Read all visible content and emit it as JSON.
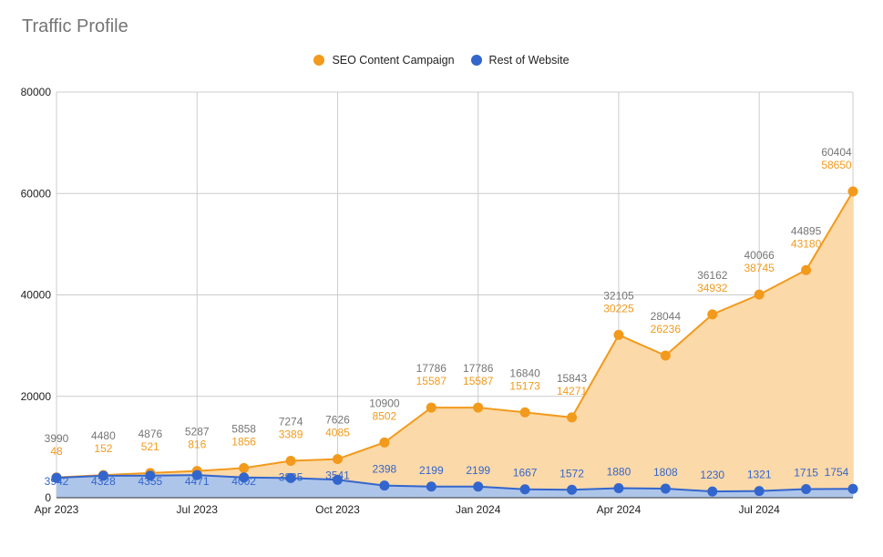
{
  "chart_data": {
    "type": "area",
    "title": "Traffic Profile",
    "xlabel": "",
    "ylabel": "",
    "ylim": [
      0,
      80000
    ],
    "yticks": [
      "0",
      "20000",
      "40000",
      "60000",
      "80000"
    ],
    "xticks": [
      "Apr 2023",
      "Jul 2023",
      "Oct 2023",
      "Jan 2024",
      "Apr 2024",
      "Jul 2024"
    ],
    "legend_position": "top",
    "grid": true,
    "categories": [
      "Apr 2023",
      "May 2023",
      "Jun 2023",
      "Jul 2023",
      "Aug 2023",
      "Sep 2023",
      "Oct 2023",
      "Nov 2023",
      "Dec 2023",
      "Jan 2024",
      "Feb 2024",
      "Mar 2024",
      "Apr 2024",
      "May 2024",
      "Jun 2024",
      "Jul 2024",
      "Aug 2024",
      "Sep 2024"
    ],
    "total_labels": [
      "3990",
      "4480",
      "4876",
      "5287",
      "5858",
      "7274",
      "7626",
      "10900",
      "17786",
      "17786",
      "16840",
      "15843",
      "32105",
      "28044",
      "36162",
      "40066",
      "44895",
      "60404"
    ],
    "series": [
      {
        "name": "SEO Content Campaign",
        "color": "#f29a1c",
        "fill": "#fcd9a8",
        "values": [
          48,
          152,
          521,
          816,
          1856,
          3389,
          4085,
          8502,
          15587,
          15587,
          15173,
          14271,
          30225,
          26236,
          34932,
          38745,
          43180,
          58650
        ]
      },
      {
        "name": "Rest of Website",
        "color": "#3366cc",
        "fill": "#aec5ea",
        "values": [
          3942,
          4328,
          4355,
          4471,
          4002,
          3885,
          3541,
          2398,
          2199,
          2199,
          1667,
          1572,
          1880,
          1808,
          1230,
          1321,
          1715,
          1754
        ]
      }
    ]
  }
}
